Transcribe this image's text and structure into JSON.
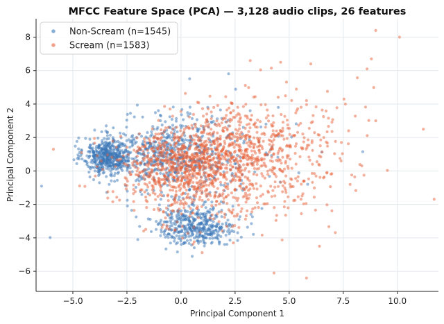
{
  "chart_data": {
    "type": "scatter",
    "title": "MFCC Feature Space (PCA) — 3,128 audio clips, 26 features",
    "xlabel": "Principal Component 1",
    "ylabel": "Principal Component 2",
    "xlim": [
      -6.7,
      11.9
    ],
    "ylim": [
      -7.2,
      9.1
    ],
    "xticks": [
      -5.0,
      -2.5,
      0.0,
      2.5,
      5.0,
      7.5,
      10.0
    ],
    "xtick_labels": [
      "−5.0",
      "−2.5",
      "0.0",
      "2.5",
      "5.0",
      "7.5",
      "10.0"
    ],
    "yticks": [
      -6,
      -4,
      -2,
      0,
      2,
      4,
      6,
      8
    ],
    "ytick_labels": [
      "−6",
      "−4",
      "−2",
      "0",
      "2",
      "4",
      "6",
      "8"
    ],
    "grid": true,
    "legend_position": "top-left",
    "series": [
      {
        "name": "Non-Scream (n=1545)",
        "color": "#3b78b8",
        "count": 1545,
        "clusters": [
          {
            "cx": -3.4,
            "cy": 0.9,
            "sx": 0.55,
            "sy": 0.55,
            "weight": 0.3
          },
          {
            "cx": 0.7,
            "cy": -3.3,
            "sx": 0.9,
            "sy": 0.55,
            "weight": 0.26
          },
          {
            "cx": -0.8,
            "cy": 1.0,
            "sx": 1.2,
            "sy": 1.0,
            "weight": 0.28
          },
          {
            "cx": 1.0,
            "cy": 0.5,
            "sx": 1.8,
            "sy": 1.6,
            "weight": 0.16
          }
        ],
        "outliers": [
          {
            "x": 8.4,
            "y": 1.15
          },
          {
            "x": -2.0,
            "y": -4.1
          },
          {
            "x": -3.6,
            "y": 0.2
          },
          {
            "x": 4.5,
            "y": 3.8
          }
        ]
      },
      {
        "name": "Scream (n=1583)",
        "color": "#e8643c",
        "count": 1583,
        "clusters": [
          {
            "cx": -0.2,
            "cy": 0.2,
            "sx": 1.4,
            "sy": 1.1,
            "weight": 0.4
          },
          {
            "cx": 2.3,
            "cy": 1.3,
            "sx": 1.6,
            "sy": 1.3,
            "weight": 0.32
          },
          {
            "cx": 4.3,
            "cy": 1.0,
            "sx": 2.0,
            "sy": 2.0,
            "weight": 0.2
          },
          {
            "cx": 1.0,
            "cy": -2.2,
            "sx": 1.5,
            "sy": 1.0,
            "weight": 0.08
          }
        ],
        "outliers": [
          {
            "x": 9.0,
            "y": 8.4
          },
          {
            "x": 10.1,
            "y": 8.0
          },
          {
            "x": 11.2,
            "y": 2.5
          },
          {
            "x": -5.9,
            "y": 1.3
          },
          {
            "x": 8.8,
            "y": 6.7
          },
          {
            "x": 8.6,
            "y": 6.1
          },
          {
            "x": 9.0,
            "y": 3.0
          },
          {
            "x": 3.2,
            "y": 6.6
          },
          {
            "x": 5.8,
            "y": -6.4
          },
          {
            "x": 4.3,
            "y": -6.1
          },
          {
            "x": 6.0,
            "y": 6.4
          },
          {
            "x": 7.6,
            "y": 4.0
          },
          {
            "x": 7.4,
            "y": 0.6
          },
          {
            "x": 6.4,
            "y": -4.5
          },
          {
            "x": -4.6,
            "y": 1.1
          }
        ]
      }
    ]
  }
}
